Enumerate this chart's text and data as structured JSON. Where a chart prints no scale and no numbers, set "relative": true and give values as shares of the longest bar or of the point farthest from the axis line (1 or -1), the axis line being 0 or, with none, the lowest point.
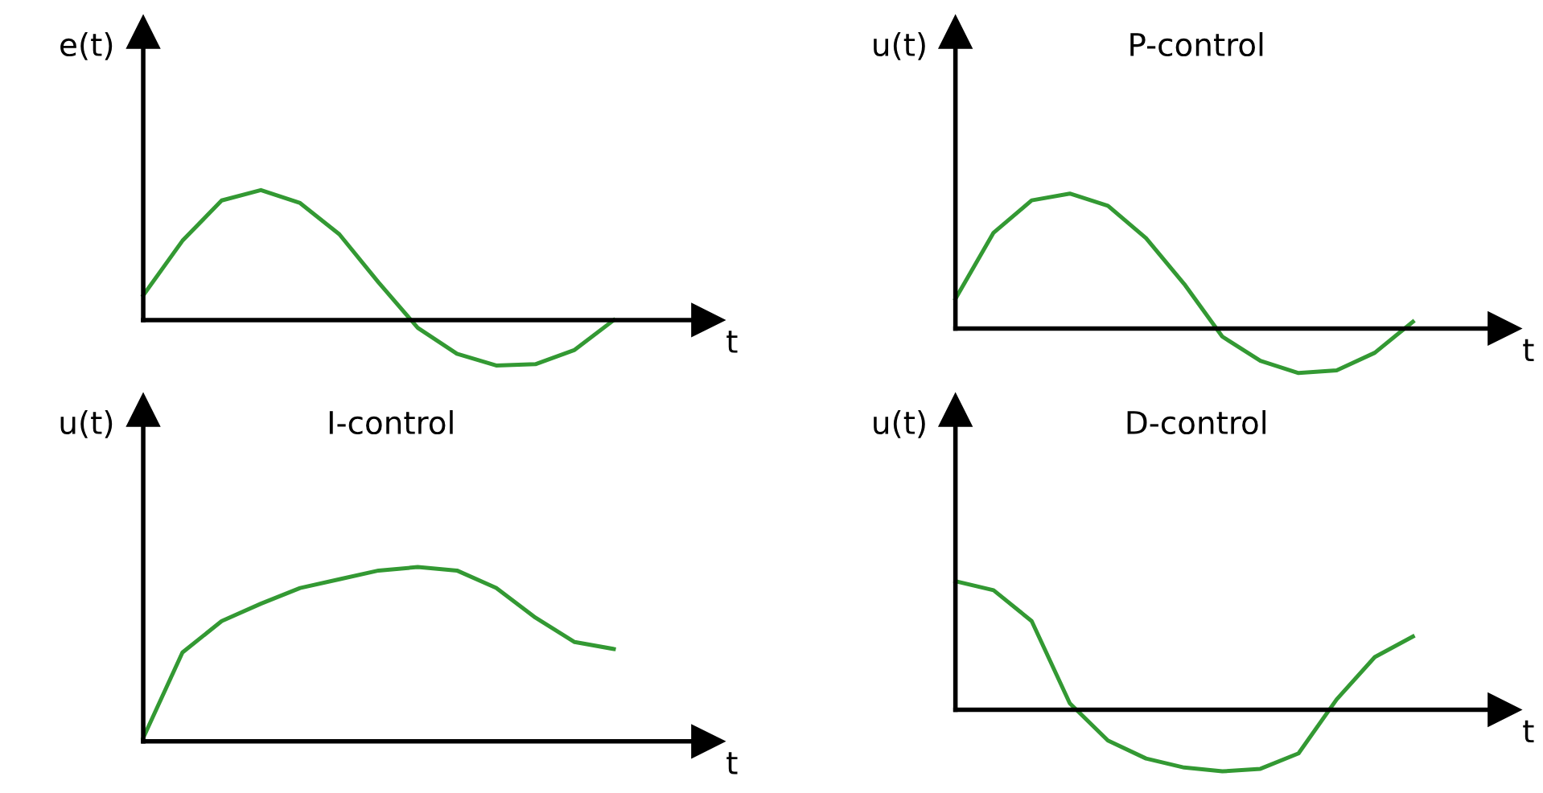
{
  "chart_data": [
    {
      "type": "line",
      "relative": true,
      "ylabel": "e(t)",
      "xlabel": "t",
      "categories": [
        null,
        null,
        null,
        null,
        null,
        null,
        null,
        null,
        null,
        null,
        null,
        null,
        null
      ],
      "series": [
        {
          "color": "#339933",
          "values": [
            0.19,
            0.61,
            0.92,
            1,
            0.9,
            0.66,
            0.29,
            -0.06,
            -0.26,
            -0.35,
            -0.34,
            -0.23,
            0
          ]
        }
      ]
    },
    {
      "type": "line",
      "relative": true,
      "title": "P-control",
      "ylabel": "u(t)",
      "xlabel": "t",
      "categories": [
        null,
        null,
        null,
        null,
        null,
        null,
        null,
        null,
        null,
        null,
        null,
        null,
        null
      ],
      "series": [
        {
          "color": "#339933",
          "values": [
            0.22,
            0.71,
            0.95,
            1,
            0.91,
            0.67,
            0.33,
            -0.06,
            -0.24,
            -0.33,
            -0.31,
            -0.18,
            0.05
          ]
        }
      ]
    },
    {
      "type": "line",
      "relative": true,
      "title": "I-control",
      "ylabel": "u(t)",
      "xlabel": "t",
      "categories": [
        null,
        null,
        null,
        null,
        null,
        null,
        null,
        null,
        null,
        null,
        null,
        null,
        null
      ],
      "series": [
        {
          "color": "#339933",
          "values": [
            0.02,
            0.51,
            0.69,
            0.79,
            0.88,
            0.93,
            0.98,
            1,
            0.98,
            0.88,
            0.71,
            0.57,
            0.53
          ]
        }
      ]
    },
    {
      "type": "line",
      "relative": true,
      "title": "D-control",
      "ylabel": "u(t)",
      "xlabel": "t",
      "categories": [
        null,
        null,
        null,
        null,
        null,
        null,
        null,
        null,
        null,
        null,
        null,
        null,
        null
      ],
      "series": [
        {
          "color": "#339933",
          "values": [
            1,
            0.93,
            0.69,
            0.05,
            -0.24,
            -0.38,
            -0.45,
            -0.48,
            -0.46,
            -0.34,
            0.08,
            0.41,
            0.57
          ]
        }
      ]
    }
  ]
}
